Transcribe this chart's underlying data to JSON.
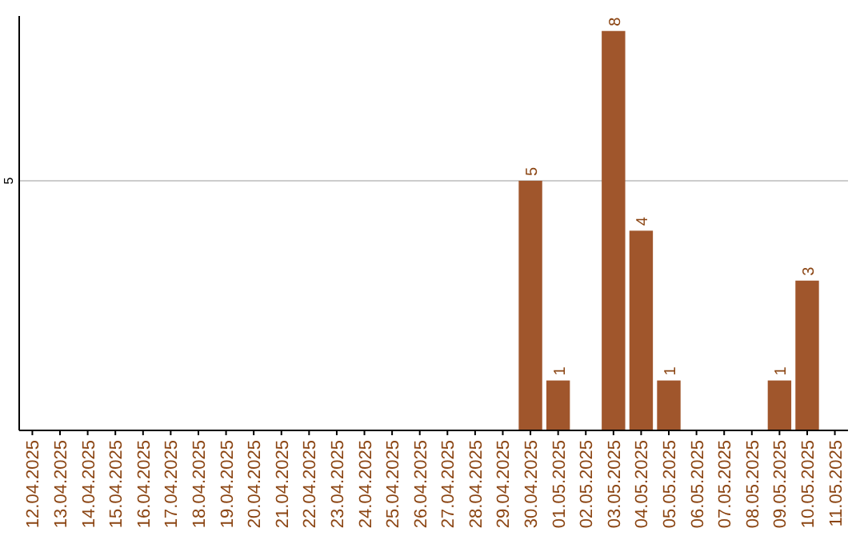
{
  "chart_data": {
    "type": "bar",
    "categories": [
      "12.04.2025",
      "13.04.2025",
      "14.04.2025",
      "15.04.2025",
      "16.04.2025",
      "17.04.2025",
      "18.04.2025",
      "19.04.2025",
      "20.04.2025",
      "21.04.2025",
      "22.04.2025",
      "23.04.2025",
      "24.04.2025",
      "25.04.2025",
      "26.04.2025",
      "27.04.2025",
      "28.04.2025",
      "29.04.2025",
      "30.04.2025",
      "01.05.2025",
      "02.05.2025",
      "03.05.2025",
      "04.05.2025",
      "05.05.2025",
      "06.05.2025",
      "07.05.2025",
      "08.05.2025",
      "09.05.2025",
      "10.05.2025",
      "11.05.2025"
    ],
    "values": [
      null,
      null,
      null,
      null,
      null,
      null,
      null,
      null,
      null,
      null,
      null,
      null,
      null,
      null,
      null,
      null,
      null,
      null,
      5,
      1,
      null,
      8,
      4,
      1,
      null,
      null,
      null,
      1,
      3,
      null
    ],
    "value_labels": [
      null,
      null,
      null,
      null,
      null,
      null,
      null,
      null,
      null,
      null,
      null,
      null,
      null,
      null,
      null,
      null,
      null,
      null,
      "5",
      "1",
      null,
      "8",
      "4",
      "1",
      null,
      null,
      null,
      "1",
      "3",
      null
    ],
    "color": "#a0562c",
    "ylim": [
      0,
      8.3
    ],
    "yticks": [
      5
    ],
    "grid": "y"
  }
}
